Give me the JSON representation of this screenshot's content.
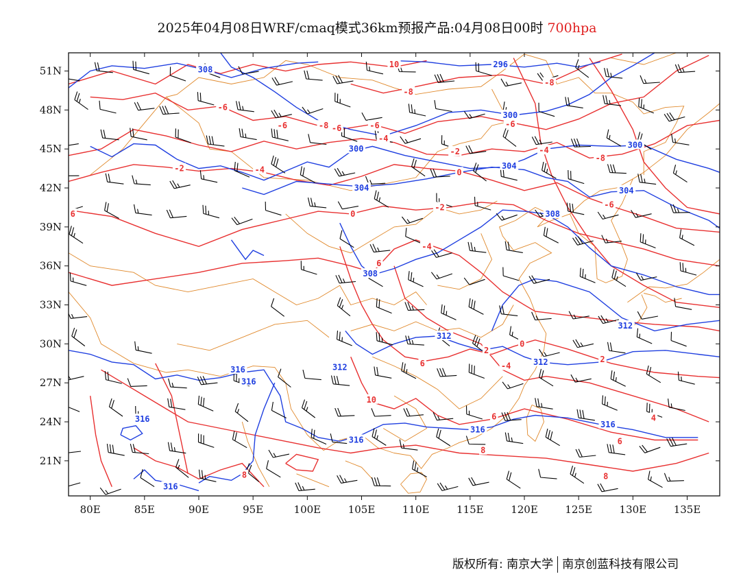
{
  "title": {
    "main": "2025年04月08日WRF/cmaq模式36km预报产品:04月08日00时",
    "level": "700hpa"
  },
  "axes": {
    "x_ticks": [
      "80E",
      "85E",
      "90E",
      "95E",
      "100E",
      "105E",
      "110E",
      "115E",
      "120E",
      "125E",
      "130E",
      "135E"
    ],
    "y_ticks": [
      "51N",
      "48N",
      "45N",
      "42N",
      "39N",
      "36N",
      "33N",
      "30N",
      "27N",
      "24N",
      "21N"
    ]
  },
  "layers": {
    "geopotential_color": "#1f3fe0",
    "temperature_color": "#e83030",
    "boundary_color": "#e0882a",
    "wind_color": "#000000"
  },
  "geopotential_labels": [
    {
      "id": "g1",
      "text": "308",
      "lon": 90.6,
      "lat": 51.1
    },
    {
      "id": "g2",
      "text": "296",
      "lon": 117.8,
      "lat": 51.5
    },
    {
      "id": "g3",
      "text": "300",
      "lon": 118.7,
      "lat": 47.6
    },
    {
      "id": "g4",
      "text": "300",
      "lon": 130.2,
      "lat": 45.3
    },
    {
      "id": "g5",
      "text": "300",
      "lon": 104.5,
      "lat": 45.0
    },
    {
      "id": "g6",
      "text": "304",
      "lon": 118.6,
      "lat": 43.7
    },
    {
      "id": "g7",
      "text": "304",
      "lon": 105.0,
      "lat": 42.0
    },
    {
      "id": "g8",
      "text": "304",
      "lon": 129.4,
      "lat": 41.8
    },
    {
      "id": "g9",
      "text": "308",
      "lon": 122.6,
      "lat": 40.0
    },
    {
      "id": "g10",
      "text": "308",
      "lon": 105.8,
      "lat": 35.4
    },
    {
      "id": "g11",
      "text": "312",
      "lon": 112.6,
      "lat": 30.6
    },
    {
      "id": "g12",
      "text": "312",
      "lon": 129.3,
      "lat": 31.4
    },
    {
      "id": "g13",
      "text": "312",
      "lon": 103.0,
      "lat": 28.2
    },
    {
      "id": "g14",
      "text": "312",
      "lon": 121.5,
      "lat": 28.6
    },
    {
      "id": "g15",
      "text": "316",
      "lon": 93.6,
      "lat": 28.0
    },
    {
      "id": "g16",
      "text": "316",
      "lon": 94.6,
      "lat": 27.1
    },
    {
      "id": "g17",
      "text": "316",
      "lon": 84.8,
      "lat": 24.2
    },
    {
      "id": "g18",
      "text": "316",
      "lon": 104.5,
      "lat": 22.6
    },
    {
      "id": "g19",
      "text": "316",
      "lon": 115.7,
      "lat": 23.4
    },
    {
      "id": "g20",
      "text": "316",
      "lon": 127.7,
      "lat": 23.8
    },
    {
      "id": "g21",
      "text": "316",
      "lon": 87.4,
      "lat": 19.0
    }
  ],
  "temperature_labels": [
    {
      "id": "t1",
      "text": "10",
      "lon": 108.0,
      "lat": 51.5
    },
    {
      "id": "t2",
      "text": "-8",
      "lon": 109.3,
      "lat": 49.4
    },
    {
      "id": "t3",
      "text": "-8",
      "lon": 122.3,
      "lat": 50.1
    },
    {
      "id": "t4",
      "text": "-6",
      "lon": 92.2,
      "lat": 48.2
    },
    {
      "id": "t5",
      "text": "-6",
      "lon": 118.7,
      "lat": 46.9
    },
    {
      "id": "t6",
      "text": "-6",
      "lon": 97.7,
      "lat": 46.8
    },
    {
      "id": "t7",
      "text": "-8",
      "lon": 101.5,
      "lat": 46.8
    },
    {
      "id": "t8",
      "text": "-6",
      "lon": 102.7,
      "lat": 46.6
    },
    {
      "id": "t9",
      "text": "-6",
      "lon": 106.2,
      "lat": 46.8
    },
    {
      "id": "t10",
      "text": "-4",
      "lon": 107.0,
      "lat": 45.8
    },
    {
      "id": "t11",
      "text": "-8",
      "lon": 127.0,
      "lat": 44.3
    },
    {
      "id": "t12",
      "text": "-4",
      "lon": 121.8,
      "lat": 44.9
    },
    {
      "id": "t13",
      "text": "-2",
      "lon": 113.6,
      "lat": 44.8
    },
    {
      "id": "t14",
      "text": "-2",
      "lon": 88.2,
      "lat": 43.5
    },
    {
      "id": "t15",
      "text": "-4",
      "lon": 95.6,
      "lat": 43.4
    },
    {
      "id": "t16",
      "text": "0",
      "lon": 114.0,
      "lat": 43.2
    },
    {
      "id": "t17",
      "text": "-6",
      "lon": 127.8,
      "lat": 40.7
    },
    {
      "id": "t18",
      "text": "-2",
      "lon": 112.2,
      "lat": 40.5
    },
    {
      "id": "t19",
      "text": "0",
      "lon": 104.2,
      "lat": 40.0
    },
    {
      "id": "t20",
      "text": "6",
      "lon": 78.4,
      "lat": 40.0
    },
    {
      "id": "t21",
      "text": "-4",
      "lon": 111.0,
      "lat": 37.5
    },
    {
      "id": "t22",
      "text": "6",
      "lon": 106.6,
      "lat": 36.2
    },
    {
      "id": "t23",
      "text": "2",
      "lon": 116.5,
      "lat": 29.5
    },
    {
      "id": "t24",
      "text": "0",
      "lon": 119.8,
      "lat": 30.0
    },
    {
      "id": "t25",
      "text": "-4",
      "lon": 118.3,
      "lat": 28.3
    },
    {
      "id": "t26",
      "text": "2",
      "lon": 127.2,
      "lat": 28.8
    },
    {
      "id": "t27",
      "text": "6",
      "lon": 110.6,
      "lat": 28.5
    },
    {
      "id": "t28",
      "text": "10",
      "lon": 105.9,
      "lat": 25.7
    },
    {
      "id": "t29",
      "text": "6",
      "lon": 117.2,
      "lat": 24.4
    },
    {
      "id": "t30",
      "text": "4",
      "lon": 131.9,
      "lat": 24.3
    },
    {
      "id": "t31",
      "text": "6",
      "lon": 128.8,
      "lat": 22.5
    },
    {
      "id": "t32",
      "text": "8",
      "lon": 116.2,
      "lat": 21.8
    },
    {
      "id": "t33",
      "text": "8",
      "lon": 94.2,
      "lat": 19.9
    },
    {
      "id": "t34",
      "text": "8",
      "lon": 127.5,
      "lat": 19.8
    }
  ],
  "credit": {
    "left": "版权所有: 南京大学",
    "right": "南京创蓝科技有限公司"
  }
}
